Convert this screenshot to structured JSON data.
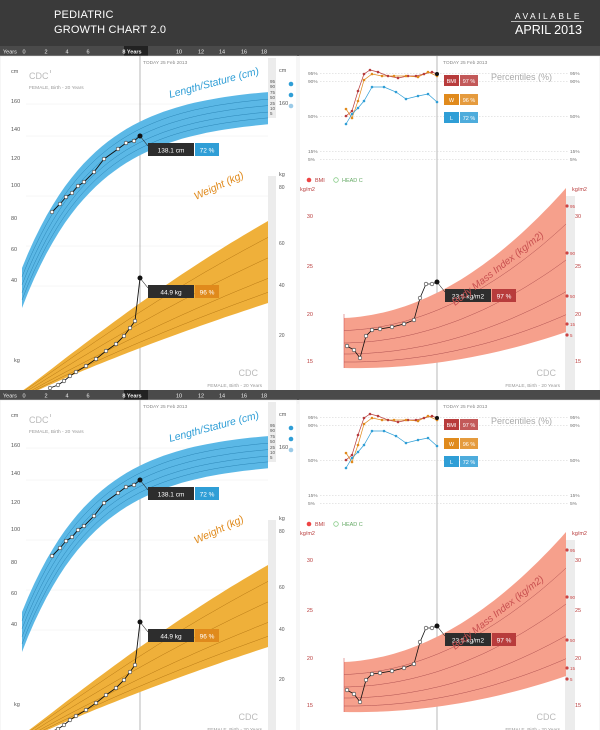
{
  "header": {
    "title_line1": "PEDIATRIC",
    "title_line2": "GROWTH CHART 2.0",
    "available": "AVAILABLE",
    "release": "APRIL 2013"
  },
  "colors": {
    "header_bg": "#3a3a3a",
    "ruler_bg": "#4a4a4a",
    "length_fill": "#5bb8e6",
    "weight_fill": "#efb03a",
    "bmi_fill": "#f6a08c",
    "bmi_badge": "#b83c3c",
    "w_badge": "#e08a1c",
    "l_badge": "#2f9ed6",
    "dark_badge": "#2d2d2d"
  },
  "ruler": {
    "years_label": "Years",
    "ticks": [
      "0",
      "2",
      "4",
      "6",
      "8 Years",
      "10",
      "12",
      "14",
      "16",
      "18"
    ]
  },
  "today_label": "TODAY 25 Feb 2013",
  "panels": {
    "cdc": "CDC",
    "cdc_sub": "FEMALE, Birth - 20 Years",
    "unit_cm": "cm",
    "unit_kg": "kg",
    "unit_kgm2": "kg/m2",
    "length_title": "Length/Stature (cm)",
    "weight_title": "Weight (kg)",
    "bmi_title": "Body Mass Index (kg/m2)",
    "percentiles_title": "Percentiles (%)",
    "legend_bmi": "BMI",
    "legend_head": "HEAD C",
    "length_value": "138.1 cm",
    "length_pct": "72 %",
    "weight_value": "44.9 kg",
    "weight_pct": "96 %",
    "bmi_value": "23.5 kg/m2",
    "bmi_pct": "97 %",
    "badge_bmi_letter": "BMI",
    "badge_bmi_pct": "97 %",
    "badge_w_letter": "W",
    "badge_w_pct": "96 %",
    "badge_l_letter": "L",
    "badge_l_pct": "72 %",
    "length_axis": [
      "160",
      "140",
      "120",
      "100",
      "80",
      "60",
      "40"
    ],
    "length_pct_labels": [
      "95",
      "90",
      "75",
      "50",
      "25",
      "10",
      "5"
    ],
    "length_right_axis": "160",
    "weight_pct_labels": [
      "80",
      "60",
      "40",
      "20"
    ],
    "kg_corner": "kg",
    "pct_axis": [
      "95%",
      "90%",
      "50%",
      "15%",
      "5%"
    ],
    "bmi_axis": [
      "30",
      "25",
      "20",
      "15"
    ],
    "bmi_pct_labels": [
      "95",
      "90",
      "50",
      "15",
      "5"
    ]
  }
}
